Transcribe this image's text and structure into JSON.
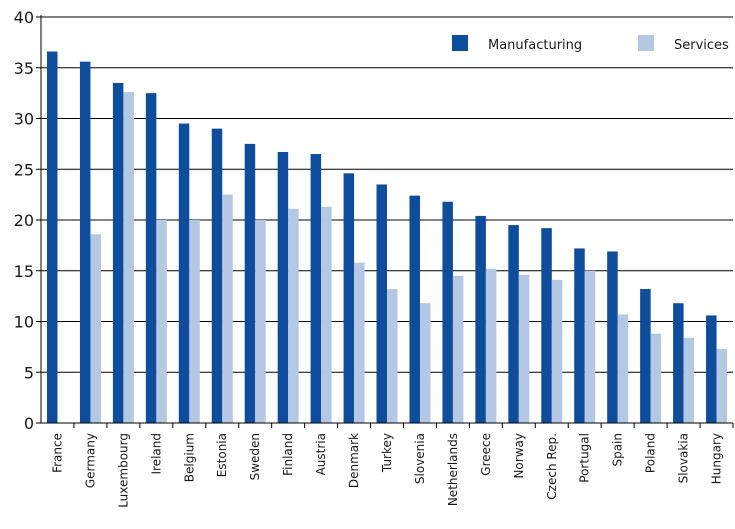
{
  "chart_data": {
    "type": "bar",
    "categories": [
      "France",
      "Germany",
      "Luxembourg",
      "Ireland",
      "Belgium",
      "Estonia",
      "Sweden",
      "Finland",
      "Austria",
      "Denmark",
      "Turkey",
      "Slovenia",
      "Netherlands",
      "Greece",
      "Norway",
      "Czech Rep.",
      "Portugal",
      "Spain",
      "Poland",
      "Slovakia",
      "Hungary"
    ],
    "series": [
      {
        "name": "Manufacturing",
        "color": "#0d4d9c",
        "values": [
          36.6,
          35.6,
          33.5,
          32.5,
          29.5,
          29.0,
          27.5,
          26.7,
          26.5,
          24.6,
          23.5,
          22.4,
          21.8,
          20.4,
          19.5,
          19.2,
          17.2,
          16.9,
          13.2,
          11.8,
          10.6
        ]
      },
      {
        "name": "Services",
        "color": "#b4c8e4",
        "values": [
          null,
          18.6,
          32.6,
          20.0,
          20.0,
          22.5,
          20.0,
          21.1,
          21.3,
          15.8,
          13.2,
          11.8,
          14.5,
          15.2,
          14.6,
          14.1,
          15.0,
          10.7,
          8.8,
          8.4,
          7.3
        ]
      }
    ],
    "ylim": [
      0,
      40
    ],
    "yticks": [
      0,
      5,
      10,
      15,
      20,
      25,
      30,
      35,
      40
    ],
    "grid": true,
    "legend_position": "top-right"
  }
}
